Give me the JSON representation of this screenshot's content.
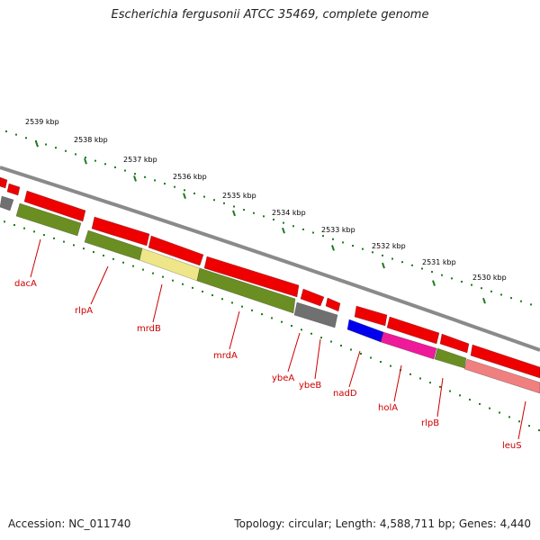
{
  "title": "Escherichia fergusonii ATCC 35469, complete genome",
  "footer": {
    "accession": "Accession: NC_011740",
    "topology": "Topology: circular; Length: 4,588,711 bp; Genes: 4,440"
  },
  "colors": {
    "backbone": "#8a8a8a",
    "ruler": "#1e7a1e",
    "gene_label": "#cc0000",
    "red": "#ee0000",
    "olive": "#6b8e23",
    "khaki": "#efe68a",
    "gray": "#707070",
    "blue": "#0000ee",
    "magenta": "#ee1a9a",
    "salmon": "#f08080"
  },
  "kbp_labels": [
    "2539 kbp",
    "2538 kbp",
    "2537 kbp",
    "2536 kbp",
    "2535 kbp",
    "2534 kbp",
    "2533 kbp",
    "2532 kbp",
    "2531 kbp",
    "2530 kbp"
  ],
  "gene_labels": [
    "dacA",
    "rlpA",
    "mrdB",
    "mrdA",
    "ybeA",
    "ybeB",
    "nadD",
    "holA",
    "rlpB",
    "leuS"
  ]
}
